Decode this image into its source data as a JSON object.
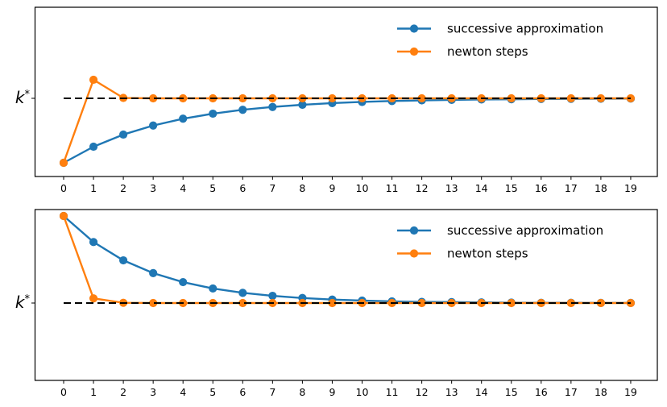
{
  "figure": {
    "background": "#ffffff",
    "description_colors": {
      "series_blue": "#1f77b4",
      "series_orange": "#ff7f0e",
      "reference_black": "#000000"
    }
  },
  "chart_data": [
    {
      "type": "line",
      "panel": "top",
      "x": [
        0,
        1,
        2,
        3,
        4,
        5,
        6,
        7,
        8,
        9,
        10,
        11,
        12,
        13,
        14,
        15,
        16,
        17,
        18,
        19
      ],
      "xtick_labels": [
        "0",
        "1",
        "2",
        "3",
        "4",
        "5",
        "6",
        "7",
        "8",
        "9",
        "10",
        "11",
        "12",
        "13",
        "14",
        "15",
        "16",
        "17",
        "18",
        "19"
      ],
      "ytick_label": {
        "base": "k",
        "sup": "*"
      },
      "series": [
        {
          "name": "successive approximation",
          "color": "#1f77b4",
          "marker": "o",
          "values": [
            0.5,
            0.625,
            0.719,
            0.789,
            0.842,
            0.881,
            0.911,
            0.933,
            0.95,
            0.963,
            0.972,
            0.979,
            0.984,
            0.988,
            0.991,
            0.993,
            0.995,
            0.996,
            0.997,
            0.998
          ]
        },
        {
          "name": "newton steps",
          "color": "#ff7f0e",
          "marker": "o",
          "values": [
            0.5,
            1.144,
            1.003,
            1.0,
            1.0,
            1.0,
            1.0,
            1.0,
            1.0,
            1.0,
            1.0,
            1.0,
            1.0,
            1.0,
            1.0,
            1.0,
            1.0,
            1.0,
            1.0,
            1.0
          ]
        }
      ],
      "reference_line": {
        "value": 1.0,
        "style": "dashed",
        "color": "#000000",
        "label_base": "k",
        "label_sup": "*"
      },
      "legend": {
        "position": "upper right",
        "frame": false,
        "entries": [
          "successive approximation",
          "newton steps"
        ]
      },
      "grid": false
    },
    {
      "type": "line",
      "panel": "bottom",
      "x": [
        0,
        1,
        2,
        3,
        4,
        5,
        6,
        7,
        8,
        9,
        10,
        11,
        12,
        13,
        14,
        15,
        16,
        17,
        18,
        19
      ],
      "xtick_labels": [
        "0",
        "1",
        "2",
        "3",
        "4",
        "5",
        "6",
        "7",
        "8",
        "9",
        "10",
        "11",
        "12",
        "13",
        "14",
        "15",
        "16",
        "17",
        "18",
        "19"
      ],
      "ytick_label": {
        "base": "k",
        "sup": "*"
      },
      "series": [
        {
          "name": "successive approximation",
          "color": "#1f77b4",
          "marker": "o",
          "values": [
            1.675,
            1.473,
            1.331,
            1.232,
            1.162,
            1.113,
            1.079,
            1.056,
            1.039,
            1.027,
            1.019,
            1.013,
            1.009,
            1.007,
            1.005,
            1.003,
            1.002,
            1.002,
            1.001,
            1.001
          ]
        },
        {
          "name": "newton steps",
          "color": "#ff7f0e",
          "marker": "o",
          "values": [
            1.675,
            1.036,
            1.002,
            1.0,
            1.0,
            1.0,
            1.0,
            1.0,
            1.0,
            1.0,
            1.0,
            1.0,
            1.0,
            1.0,
            1.0,
            1.0,
            1.0,
            1.0,
            1.0,
            1.0
          ]
        }
      ],
      "reference_line": {
        "value": 1.0,
        "style": "dashed",
        "color": "#000000",
        "label_base": "k",
        "label_sup": "*"
      },
      "legend": {
        "position": "upper right",
        "frame": false,
        "entries": [
          "successive approximation",
          "newton steps"
        ]
      },
      "grid": false
    }
  ]
}
